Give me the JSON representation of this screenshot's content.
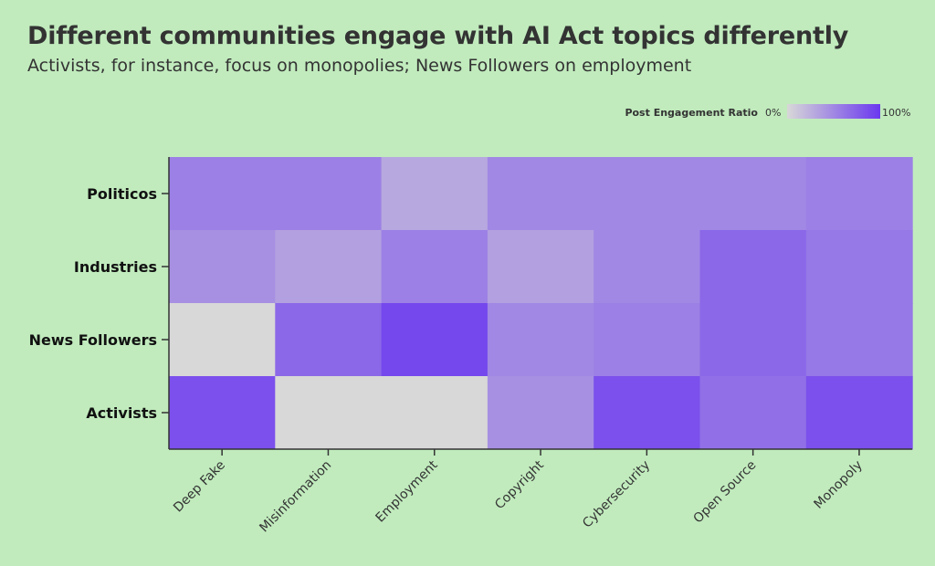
{
  "chart_data": {
    "type": "heatmap",
    "title": "Different communities engage with AI Act topics differently",
    "subtitle": "Activists, for instance, focus on monopolies; News Followers on employment",
    "x_categories": [
      "Deep Fake",
      "Misinformation",
      "Employment",
      "Copyright",
      "Cybersecurity",
      "Open Source",
      "Monopoly"
    ],
    "y_categories": [
      "Politicos",
      "Industries",
      "News Followers",
      "Activists"
    ],
    "values": [
      [
        55,
        55,
        30,
        50,
        50,
        50,
        55
      ],
      [
        45,
        35,
        55,
        35,
        50,
        70,
        60
      ],
      [
        0,
        70,
        90,
        50,
        55,
        70,
        60
      ],
      [
        85,
        0,
        0,
        45,
        85,
        65,
        85
      ]
    ],
    "value_range": [
      0,
      100
    ],
    "legend": {
      "title": "Post Engagement Ratio",
      "min_label": "0%",
      "max_label": "100%",
      "placement": "top-right"
    },
    "colors": {
      "low": "#d8d8d8",
      "high": "#6a38ef",
      "background": "#c1ebbd",
      "axis": "#333333"
    },
    "grid": false
  }
}
